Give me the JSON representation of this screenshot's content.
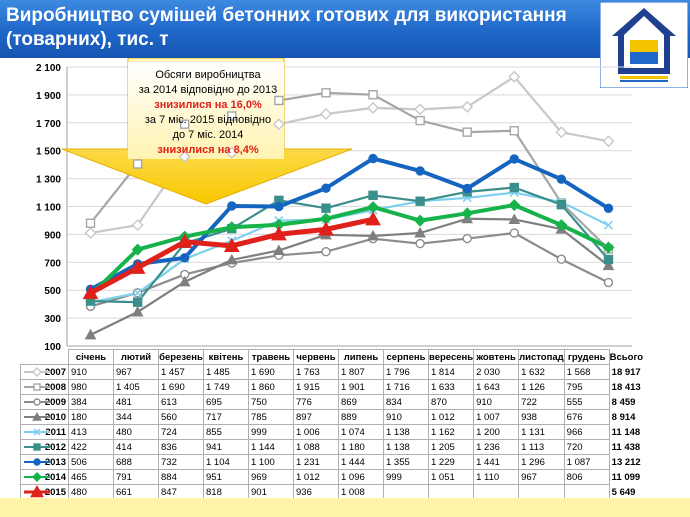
{
  "header": {
    "title": "Виробництво сумішей бетонних готових для використання (товарних), тис. т"
  },
  "callout": {
    "line1": "Обсяги виробництва",
    "line2": "за 2014 відповідно до 2013",
    "line3": "знизилися на 16,0%",
    "line4": "за 7 міс. 2015 відповідно",
    "line5": "до 7 міс. 2014",
    "line6": "знизилися на 8,4%"
  },
  "colors": {
    "header_bg": "#1f67c8",
    "callout_fill": "#fdd835",
    "highlight_red": "#e0201a",
    "bottom_bar": "#fff3a8"
  },
  "chart_data": {
    "type": "line",
    "title": "Виробництво сумішей бетонних готових для використання (товарних), тис. т",
    "categories": [
      "січень",
      "лютий",
      "березень",
      "квітень",
      "травень",
      "червень",
      "липень",
      "серпень",
      "вересень",
      "жовтень",
      "листопад",
      "грудень"
    ],
    "total_header": "Всього",
    "ylim": [
      100,
      2100
    ],
    "yticks": [
      "100",
      "300",
      "500",
      "700",
      "900",
      "1 100",
      "1 300",
      "1 500",
      "1 700",
      "1 900",
      "2 100"
    ],
    "ytick_values": [
      100,
      300,
      500,
      700,
      900,
      1100,
      1300,
      1500,
      1700,
      1900,
      2100
    ],
    "grid": true,
    "series": [
      {
        "name": "2007",
        "color": "#c8c8c8",
        "marker": "diamond",
        "values": [
          910,
          967,
          1457,
          1485,
          1690,
          1763,
          1807,
          1796,
          1814,
          2030,
          1632,
          1568
        ],
        "labels": [
          "910",
          "967",
          "1 457",
          "1 485",
          "1 690",
          "1 763",
          "1 807",
          "1 796",
          "1 814",
          "2 030",
          "1 632",
          "1 568"
        ],
        "total": "18 917"
      },
      {
        "name": "2008",
        "color": "#a6a6a6",
        "marker": "square",
        "values": [
          980,
          1405,
          1690,
          1749,
          1860,
          1915,
          1901,
          1716,
          1633,
          1643,
          1126,
          795
        ],
        "labels": [
          "980",
          "1 405",
          "1 690",
          "1 749",
          "1 860",
          "1 915",
          "1 901",
          "1 716",
          "1 633",
          "1 643",
          "1 126",
          "795"
        ],
        "total": "18 413"
      },
      {
        "name": "2009",
        "color": "#8c8c8c",
        "marker": "circle",
        "values": [
          384,
          481,
          613,
          695,
          750,
          776,
          869,
          834,
          870,
          910,
          722,
          555
        ],
        "labels": [
          "384",
          "481",
          "613",
          "695",
          "750",
          "776",
          "869",
          "834",
          "870",
          "910",
          "722",
          "555"
        ],
        "total": "8 459"
      },
      {
        "name": "2010",
        "color": "#7f7f7f",
        "marker": "triangle",
        "values": [
          180,
          344,
          560,
          717,
          785,
          897,
          889,
          910,
          1012,
          1007,
          938,
          676
        ],
        "labels": [
          "180",
          "344",
          "560",
          "717",
          "785",
          "897",
          "889",
          "910",
          "1 012",
          "1 007",
          "938",
          "676"
        ],
        "total": "8 914"
      },
      {
        "name": "2011",
        "color": "#7fd0ee",
        "marker": "x",
        "values": [
          413,
          480,
          724,
          855,
          999,
          1006,
          1074,
          1138,
          1162,
          1200,
          1131,
          966
        ],
        "labels": [
          "413",
          "480",
          "724",
          "855",
          "999",
          "1 006",
          "1 074",
          "1 138",
          "1 162",
          "1 200",
          "1 131",
          "966"
        ],
        "total": "11 148"
      },
      {
        "name": "2012",
        "color": "#3a8f8c",
        "marker": "square",
        "values": [
          422,
          414,
          836,
          941,
          1144,
          1088,
          1180,
          1138,
          1205,
          1236,
          1113,
          720
        ],
        "labels": [
          "422",
          "414",
          "836",
          "941",
          "1 144",
          "1 088",
          "1 180",
          "1 138",
          "1 205",
          "1 236",
          "1 113",
          "720"
        ],
        "total": "11 438"
      },
      {
        "name": "2013",
        "color": "#1565c0",
        "marker": "circle",
        "values": [
          506,
          688,
          732,
          1104,
          1100,
          1231,
          1444,
          1355,
          1229,
          1441,
          1296,
          1087
        ],
        "labels": [
          "506",
          "688",
          "732",
          "1 104",
          "1 100",
          "1 231",
          "1 444",
          "1 355",
          "1 229",
          "1 441",
          "1 296",
          "1 087"
        ],
        "total": "13 212"
      },
      {
        "name": "2014",
        "color": "#16b34a",
        "marker": "diamond",
        "values": [
          465,
          791,
          884,
          951,
          969,
          1012,
          1096,
          999,
          1051,
          1110,
          967,
          806
        ],
        "labels": [
          "465",
          "791",
          "884",
          "951",
          "969",
          "1 012",
          "1 096",
          "999",
          "1 051",
          "1 110",
          "967",
          "806"
        ],
        "total": "11 099"
      },
      {
        "name": "2015",
        "color": "#e0201a",
        "marker": "triangle",
        "values": [
          480,
          661,
          847,
          818,
          901,
          936,
          1008,
          null,
          null,
          null,
          null,
          null
        ],
        "labels": [
          "480",
          "661",
          "847",
          "818",
          "901",
          "936",
          "1 008",
          "",
          "",
          "",
          "",
          ""
        ],
        "total": "5 649"
      }
    ]
  }
}
